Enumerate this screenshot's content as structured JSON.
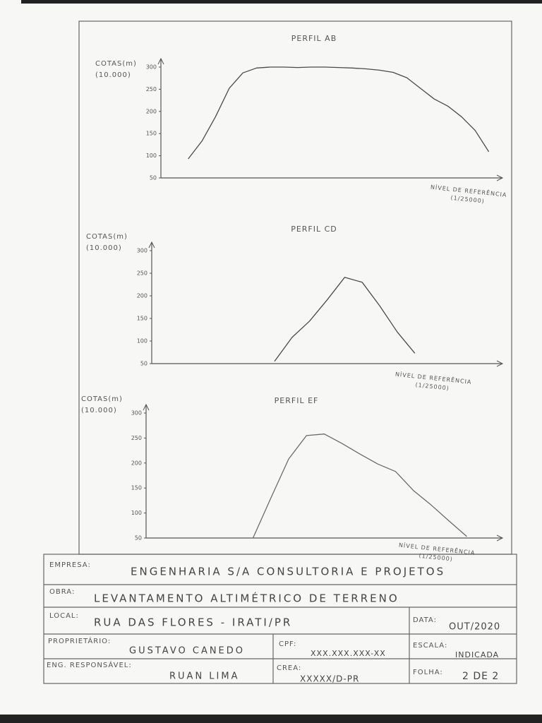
{
  "chart_data": [
    {
      "type": "line",
      "title": "PERFIL AB",
      "y_label": [
        "COTAS(m)",
        "(10.000)"
      ],
      "x_label": [
        "NÍVEL DE REFERÊNCIA",
        "(1/25000)"
      ],
      "categories": [
        null,
        null,
        null,
        null,
        null,
        null,
        null,
        null,
        null,
        null,
        null,
        null,
        null,
        null,
        null,
        null,
        null,
        null,
        null,
        null,
        null,
        null,
        null,
        null,
        null
      ],
      "values": [
        null,
        null,
        93,
        133,
        188,
        252,
        287,
        298,
        300,
        300,
        299,
        300,
        300,
        299,
        298,
        296,
        293,
        288,
        276,
        252,
        228,
        212,
        188,
        157,
        109
      ],
      "color": "#4a4a4a",
      "ylim": [
        50,
        300
      ],
      "yticks": [
        50,
        100,
        150,
        200,
        250,
        300
      ]
    },
    {
      "type": "line",
      "title": "PERFIL CD",
      "y_label": [
        "COTAS(m)",
        "(10.000)"
      ],
      "x_label": [
        "NÍVEL DE REFERÊNCIA",
        "(1/25000)"
      ],
      "categories": [
        null,
        null,
        null,
        null,
        null,
        null,
        null,
        null,
        null,
        null,
        null,
        null,
        null,
        null,
        null,
        null,
        null,
        null,
        null,
        null
      ],
      "values": [
        null,
        null,
        null,
        null,
        null,
        null,
        null,
        55,
        108,
        144,
        191,
        241,
        230,
        178,
        120,
        73,
        null,
        null,
        null,
        null
      ],
      "color": "#4a4a4a",
      "ylim": [
        50,
        300
      ],
      "yticks": [
        50,
        100,
        150,
        200,
        250,
        300
      ]
    },
    {
      "type": "line",
      "title": "PERFIL EF",
      "y_label": [
        "COTAS(m)",
        "(10.000)"
      ],
      "x_label": [
        "NÍVEL DE REFERÊNCIA",
        "(1/25000)"
      ],
      "categories": [
        null,
        null,
        null,
        null,
        null,
        null,
        null,
        null,
        null,
        null,
        null,
        null,
        null,
        null,
        null,
        null,
        null,
        null,
        null,
        null
      ],
      "values": [
        null,
        null,
        null,
        null,
        null,
        null,
        50,
        130,
        208,
        255,
        258,
        239,
        218,
        198,
        183,
        145,
        116,
        84,
        53,
        null
      ],
      "color": "#6a6a6a",
      "ylim": [
        50,
        300
      ],
      "yticks": [
        50,
        100,
        150,
        200,
        250,
        300
      ]
    }
  ],
  "title_block": {
    "empresa": {
      "label": "EMPRESA:",
      "value": "ENGENHARIA S/A CONSULTORIA E PROJETOS"
    },
    "obra": {
      "label": "OBRA:",
      "value": "LEVANTAMENTO ALTIMÉTRICO DE TERRENO"
    },
    "local": {
      "label": "LOCAL:",
      "value": "RUA DAS FLORES - IRATI/PR"
    },
    "data": {
      "label": "DATA:",
      "value": "OUT/2020"
    },
    "proprietario": {
      "label": "PROPRIETÁRIO:",
      "value": "GUSTAVO CANEDO"
    },
    "cpf": {
      "label": "CPF:",
      "value": "XXX.XXX.XXX-XX"
    },
    "escala": {
      "label": "ESCALA:",
      "value": "INDICADA"
    },
    "responsavel": {
      "label": "ENG. RESPONSÁVEL:",
      "value": "RUAN LIMA"
    },
    "crea": {
      "label": "CREA:",
      "value": "XXXXX/D-PR"
    },
    "folha": {
      "label": "FOLHA:",
      "value": "2 DE 2"
    }
  }
}
